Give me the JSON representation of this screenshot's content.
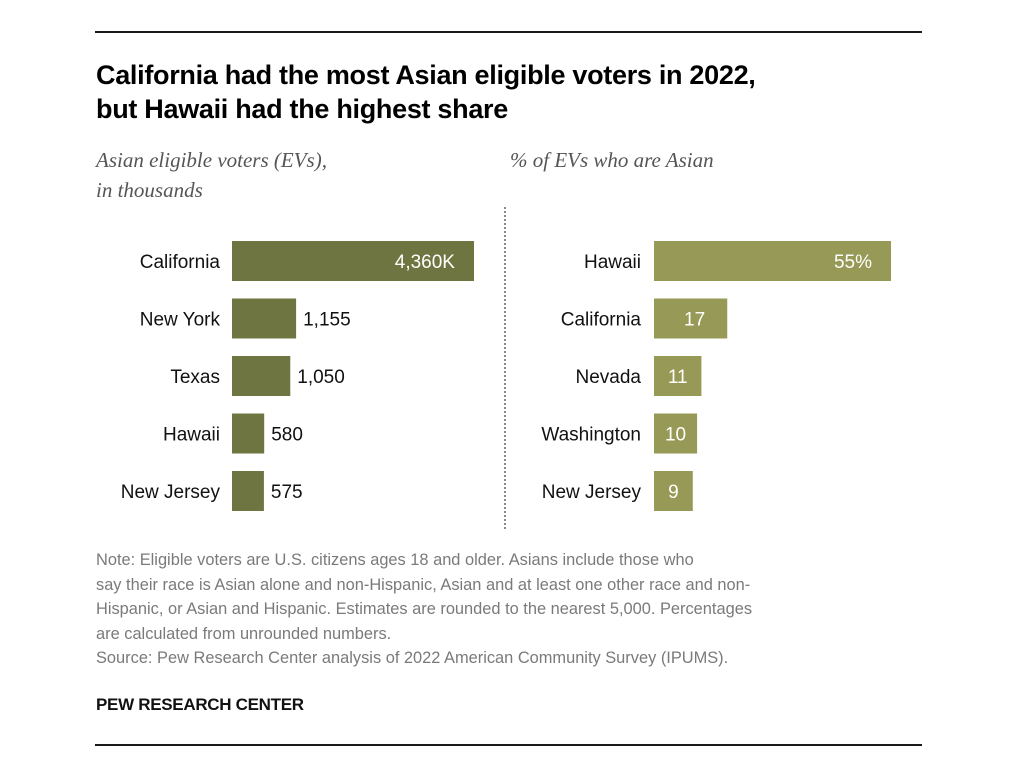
{
  "title_lines": [
    "California had the most Asian eligible voters in 2022,",
    "but Hawaii had the highest share"
  ],
  "colors": {
    "left_bar": "#6f7541",
    "right_bar": "#979a56",
    "label_text": "#111111",
    "inner_value_text": "#ffffff"
  },
  "chart_data": [
    {
      "type": "bar",
      "orientation": "horizontal",
      "title_lines": [
        "Asian eligible voters (EVs),",
        "in thousands"
      ],
      "categories": [
        "California",
        "New York",
        "Texas",
        "Hawaii",
        "New Jersey"
      ],
      "values": [
        4360,
        1155,
        1050,
        580,
        575
      ],
      "value_labels": [
        "4,360K",
        "1,155",
        "1,050",
        "580",
        "575"
      ],
      "units": "thousands",
      "xlim": [
        0,
        4360
      ],
      "grid": false,
      "legend": "none"
    },
    {
      "type": "bar",
      "orientation": "horizontal",
      "title_lines": [
        "% of EVs who are Asian"
      ],
      "categories": [
        "Hawaii",
        "California",
        "Nevada",
        "Washington",
        "New Jersey"
      ],
      "values": [
        55,
        17,
        11,
        10,
        9
      ],
      "value_labels": [
        "55%",
        "17",
        "11",
        "10",
        "9"
      ],
      "units": "percent",
      "xlim": [
        0,
        55
      ],
      "grid": false,
      "legend": "none"
    }
  ],
  "note_lines": [
    "Note: Eligible voters are U.S. citizens ages 18 and older. Asians include those who",
    "say their race is Asian alone and non-Hispanic, Asian and at least one other race and non-",
    "Hispanic, or Asian and Hispanic. Estimates are rounded to the nearest 5,000. Percentages",
    "are calculated from unrounded numbers.",
    "Source: Pew Research Center analysis of 2022 American Community Survey (IPUMS)."
  ],
  "brand": "PEW RESEARCH CENTER"
}
